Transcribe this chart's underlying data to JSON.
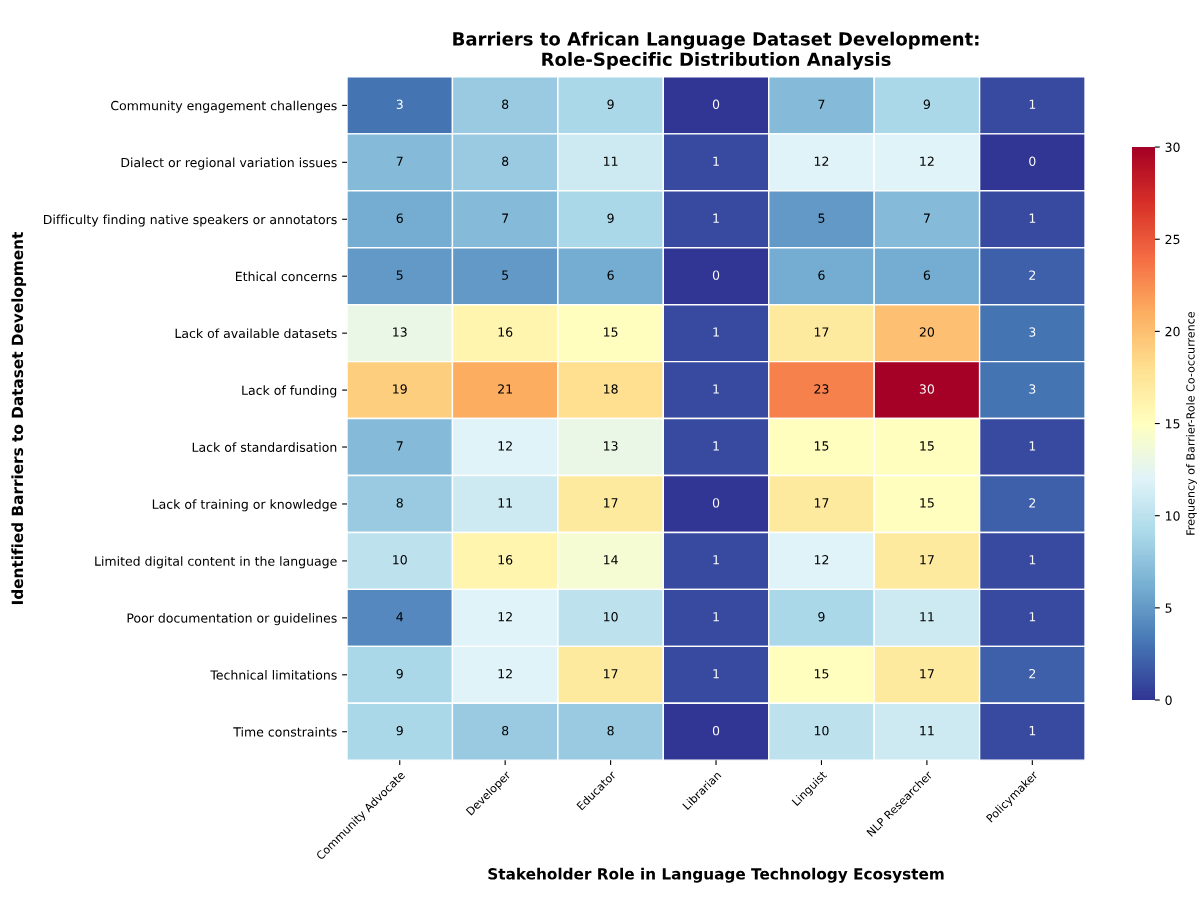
{
  "chart_data": {
    "type": "heatmap",
    "title": "Barriers to African Language Dataset Development:\nRole-Specific Distribution Analysis",
    "xlabel": "Stakeholder Role in Language Technology Ecosystem",
    "ylabel": "Identified Barriers to Dataset Development",
    "clabel": "Frequency of Barrier-Role Co-occurrence",
    "categories": [
      "Community Advocate",
      "Developer",
      "Educator",
      "Librarian",
      "Linguist",
      "NLP Researcher",
      "Policymaker"
    ],
    "y_categories": [
      "Community engagement challenges",
      "Dialect or regional variation issues",
      "Difficulty finding native speakers or annotators",
      "Ethical concerns",
      "Lack of available datasets",
      "Lack of funding",
      "Lack of standardisation",
      "Lack of training or knowledge",
      "Limited digital content in the language",
      "Poor documentation or guidelines",
      "Technical limitations",
      "Time constraints"
    ],
    "cells": [
      [
        3,
        8,
        9,
        0,
        7,
        9,
        1
      ],
      [
        7,
        8,
        11,
        1,
        12,
        12,
        0
      ],
      [
        6,
        7,
        9,
        1,
        5,
        7,
        1
      ],
      [
        5,
        5,
        6,
        0,
        6,
        6,
        2
      ],
      [
        13,
        16,
        15,
        1,
        17,
        20,
        3
      ],
      [
        19,
        21,
        18,
        1,
        23,
        30,
        3
      ],
      [
        7,
        12,
        13,
        1,
        15,
        15,
        1
      ],
      [
        8,
        11,
        17,
        0,
        17,
        15,
        2
      ],
      [
        10,
        16,
        14,
        1,
        12,
        17,
        1
      ],
      [
        4,
        12,
        10,
        1,
        9,
        11,
        1
      ],
      [
        9,
        12,
        17,
        1,
        15,
        17,
        2
      ],
      [
        9,
        8,
        8,
        0,
        10,
        11,
        1
      ]
    ],
    "clim": [
      0,
      30
    ],
    "cticks": [
      0,
      5,
      10,
      15,
      20,
      25,
      30
    ],
    "data_labels": true
  }
}
